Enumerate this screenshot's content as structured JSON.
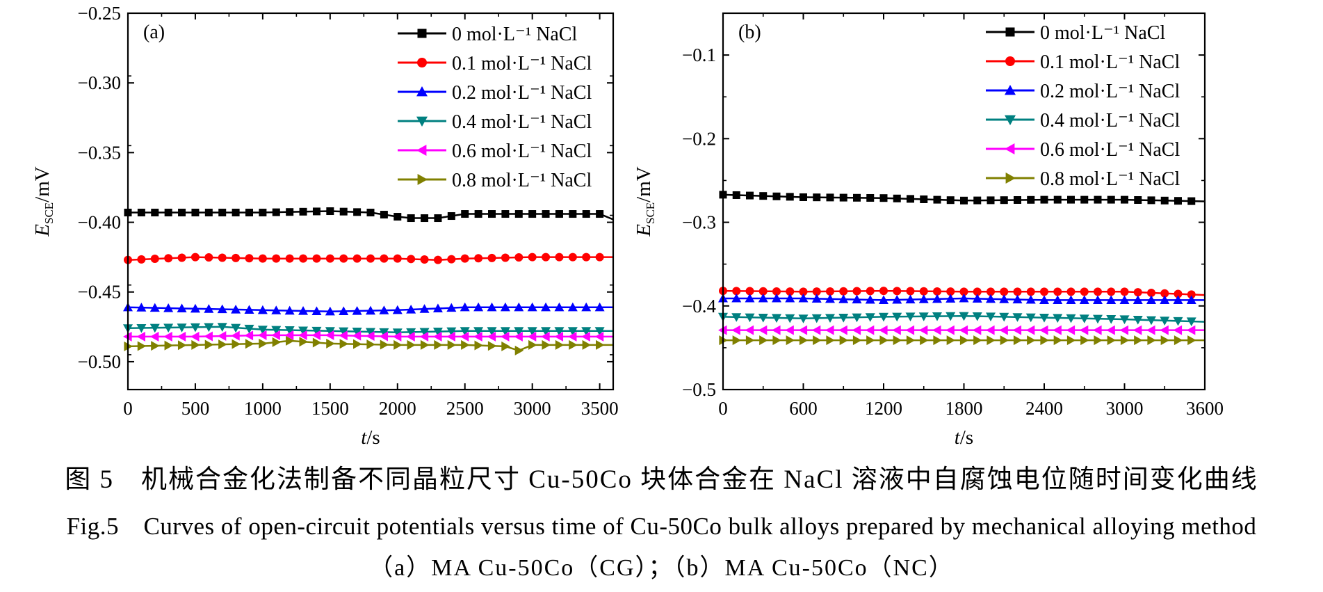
{
  "chart_data": [
    {
      "type": "line",
      "panel_label": "(a)",
      "xlabel_italic": "t",
      "xlabel_unit": "/s",
      "ylabel_symbol": "E",
      "ylabel_subscript": "SCE",
      "ylabel_unit": "/mV",
      "xlim": [
        0,
        3600
      ],
      "ylim": [
        -0.52,
        -0.25
      ],
      "xticks": [
        0,
        500,
        1000,
        1500,
        2000,
        2500,
        3000,
        3500
      ],
      "xtick_labels": [
        "0",
        "500",
        "1000",
        "1500",
        "2000",
        "2500",
        "3000",
        "3500"
      ],
      "yticks": [
        -0.5,
        -0.45,
        -0.4,
        -0.35,
        -0.3,
        -0.25
      ],
      "ytick_labels": [
        "−0.50",
        "−0.45",
        "−0.40",
        "−0.35",
        "−0.30",
        "−0.25"
      ],
      "legend_position": "top-right",
      "series": [
        {
          "name": "0 mol·L⁻¹ NaCl",
          "color": "#000000",
          "marker": "square",
          "x": [
            0,
            500,
            1000,
            1500,
            1800,
            2000,
            2100,
            2300,
            2500,
            3000,
            3500,
            3600
          ],
          "y": [
            -0.393,
            -0.393,
            -0.393,
            -0.392,
            -0.393,
            -0.396,
            -0.397,
            -0.397,
            -0.394,
            -0.394,
            -0.394,
            -0.398
          ]
        },
        {
          "name": "0.1 mol·L⁻¹ NaCl",
          "color": "#ff0000",
          "marker": "circle",
          "x": [
            0,
            500,
            1000,
            1500,
            2000,
            2300,
            2500,
            3000,
            3600
          ],
          "y": [
            -0.427,
            -0.425,
            -0.426,
            -0.426,
            -0.426,
            -0.427,
            -0.426,
            -0.425,
            -0.425
          ]
        },
        {
          "name": "0.2 mol·L⁻¹ NaCl",
          "color": "#0000ff",
          "marker": "triangle-up",
          "x": [
            0,
            500,
            1000,
            1500,
            2000,
            2500,
            3000,
            3600
          ],
          "y": [
            -0.461,
            -0.462,
            -0.463,
            -0.464,
            -0.463,
            -0.461,
            -0.461,
            -0.461
          ]
        },
        {
          "name": "0.4 mol·L⁻¹ NaCl",
          "color": "#008080",
          "marker": "triangle-down",
          "x": [
            0,
            700,
            1000,
            1500,
            2000,
            2500,
            3000,
            3600
          ],
          "y": [
            -0.476,
            -0.475,
            -0.477,
            -0.478,
            -0.479,
            -0.478,
            -0.478,
            -0.478
          ]
        },
        {
          "name": "0.6 mol·L⁻¹ NaCl",
          "color": "#ff00ff",
          "marker": "triangle-left",
          "x": [
            0,
            500,
            1000,
            1500,
            2000,
            2500,
            3000,
            3600
          ],
          "y": [
            -0.482,
            -0.482,
            -0.481,
            -0.481,
            -0.482,
            -0.482,
            -0.482,
            -0.482
          ]
        },
        {
          "name": "0.8 mol·L⁻¹ NaCl",
          "color": "#808000",
          "marker": "triangle-right",
          "x": [
            0,
            500,
            1000,
            1200,
            1500,
            2000,
            2500,
            2800,
            2900,
            3000,
            3600
          ],
          "y": [
            -0.489,
            -0.488,
            -0.487,
            -0.485,
            -0.487,
            -0.488,
            -0.488,
            -0.489,
            -0.492,
            -0.488,
            -0.488
          ]
        }
      ]
    },
    {
      "type": "line",
      "panel_label": "(b)",
      "xlabel_italic": "t",
      "xlabel_unit": "/s",
      "ylabel_symbol": "E",
      "ylabel_subscript": "SCE",
      "ylabel_unit": "/mV",
      "xlim": [
        0,
        3600
      ],
      "ylim": [
        -0.5,
        -0.05
      ],
      "xticks": [
        0,
        600,
        1200,
        1800,
        2400,
        3000,
        3600
      ],
      "xtick_labels": [
        "0",
        "600",
        "1200",
        "1800",
        "2400",
        "3000",
        "3600"
      ],
      "yticks": [
        -0.5,
        -0.4,
        -0.3,
        -0.2,
        -0.1
      ],
      "ytick_labels": [
        "−0.5",
        "−0.4",
        "−0.3",
        "−0.2",
        "−0.1"
      ],
      "legend_position": "top-right",
      "series": [
        {
          "name": "0 mol·L⁻¹ NaCl",
          "color": "#000000",
          "marker": "square",
          "x": [
            0,
            600,
            1200,
            1800,
            2400,
            3000,
            3600
          ],
          "y": [
            -0.267,
            -0.27,
            -0.271,
            -0.274,
            -0.273,
            -0.273,
            -0.275
          ]
        },
        {
          "name": "0.1 mol·L⁻¹ NaCl",
          "color": "#ff0000",
          "marker": "circle",
          "x": [
            0,
            600,
            1200,
            1800,
            2400,
            3000,
            3600
          ],
          "y": [
            -0.382,
            -0.383,
            -0.382,
            -0.383,
            -0.383,
            -0.383,
            -0.387
          ]
        },
        {
          "name": "0.2 mol·L⁻¹ NaCl",
          "color": "#0000ff",
          "marker": "triangle-up",
          "x": [
            0,
            600,
            1200,
            1800,
            2400,
            3000,
            3600
          ],
          "y": [
            -0.391,
            -0.391,
            -0.393,
            -0.391,
            -0.393,
            -0.393,
            -0.393
          ]
        },
        {
          "name": "0.4 mol·L⁻¹ NaCl",
          "color": "#008080",
          "marker": "triangle-down",
          "x": [
            0,
            600,
            1200,
            1800,
            2400,
            3000,
            3600
          ],
          "y": [
            -0.413,
            -0.415,
            -0.413,
            -0.412,
            -0.414,
            -0.416,
            -0.419
          ]
        },
        {
          "name": "0.6 mol·L⁻¹ NaCl",
          "color": "#ff00ff",
          "marker": "triangle-left",
          "x": [
            0,
            600,
            1200,
            1800,
            2400,
            3000,
            3600
          ],
          "y": [
            -0.429,
            -0.429,
            -0.429,
            -0.429,
            -0.429,
            -0.429,
            -0.429
          ]
        },
        {
          "name": "0.8 mol·L⁻¹ NaCl",
          "color": "#808000",
          "marker": "triangle-right",
          "x": [
            0,
            600,
            1200,
            1800,
            2400,
            3000,
            3600
          ],
          "y": [
            -0.441,
            -0.441,
            -0.441,
            -0.441,
            -0.441,
            -0.441,
            -0.441
          ]
        }
      ]
    }
  ],
  "caption": {
    "chinese": "图 5　机械合金化法制备不同晶粒尺寸 Cu-50Co 块体合金在 NaCl 溶液中自腐蚀电位随时间变化曲线",
    "english": "Fig.5　Curves of open-circuit potentials versus time of Cu-50Co bulk alloys prepared by mechanical alloying method",
    "subpanels": "（a）MA Cu-50Co（CG）；（b）MA Cu-50Co（NC）"
  }
}
